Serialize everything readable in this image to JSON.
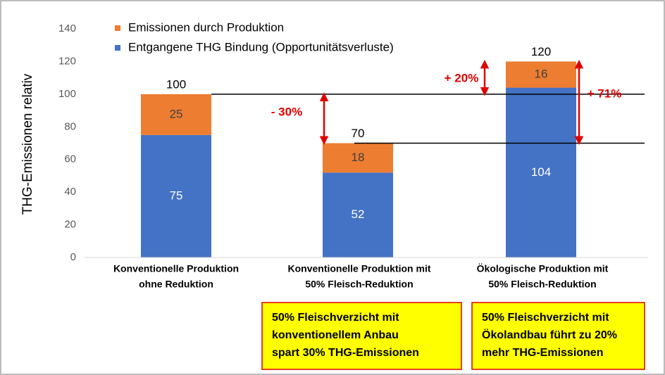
{
  "chart_data": {
    "type": "stacked_bar",
    "ylabel": "THG-Emissionen relativ",
    "categories": [
      [
        "Konventionelle Produktion",
        "ohne Reduktion"
      ],
      [
        "Konventionelle Produktion mit",
        "50% Fleisch-Reduktion"
      ],
      [
        "Ökologische Produktion mit",
        "50% Fleisch-Reduktion"
      ]
    ],
    "series": [
      {
        "name": "Entgangene THG Bindung (Opportunitätsverluste)",
        "color": "#4472c4",
        "values": [
          75,
          52,
          104
        ]
      },
      {
        "name": "Emissionen durch Produktion",
        "color": "#ed7d31",
        "values": [
          25,
          18,
          16
        ]
      }
    ],
    "totals": [
      100,
      70,
      120
    ],
    "ylim": [
      0,
      140
    ],
    "yticks": [
      0,
      20,
      40,
      60,
      80,
      100,
      120,
      140
    ],
    "reference_lines": [
      100,
      70
    ],
    "annotations": [
      {
        "text": "- 30%",
        "from": 100,
        "to": 70
      },
      {
        "text": "+ 20%",
        "from": 100,
        "to": 120
      },
      {
        "text": "+ 71%",
        "from": 70,
        "to": 120
      }
    ],
    "notes": [
      [
        "50% Fleischverzicht mit",
        "konventionellem Anbau",
        "spart 30% THG-Emissionen"
      ],
      [
        "50% Fleischverzicht mit",
        "Ökolandbau führt zu 20%",
        "mehr THG-Emissionen"
      ]
    ]
  }
}
